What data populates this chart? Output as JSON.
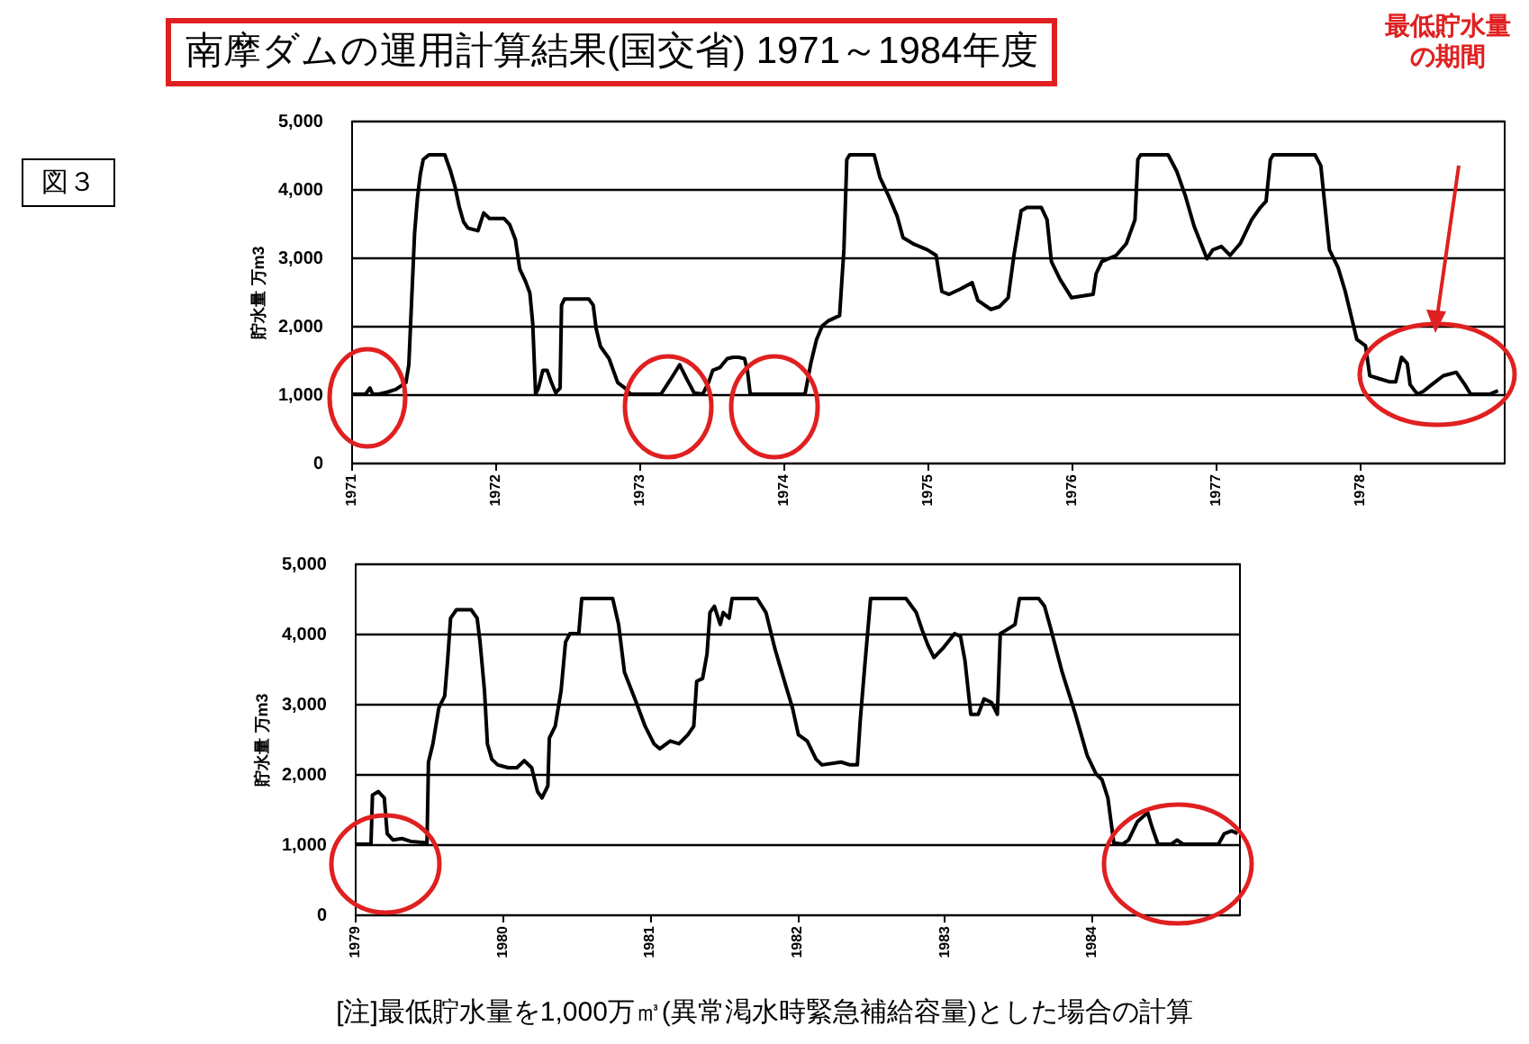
{
  "chart_data": [
    {
      "type": "line",
      "title": "南摩ダムの運用計算結果(国交省) 1971～1984年度",
      "ylabel": "貯水量 万m3",
      "color": "#000000",
      "grid": "y",
      "annotations": [
        "図３",
        "最低貯水量の期間"
      ],
      "xlim": [
        1971,
        1979
      ],
      "xticks": [
        1971,
        1972,
        1973,
        1974,
        1975,
        1976,
        1977,
        1978
      ],
      "ylim": [
        0,
        5000
      ],
      "yticks": [
        0,
        {
          "value": 1000,
          "label": "1,000"
        },
        {
          "value": 2000,
          "label": "2,000"
        },
        {
          "value": 3000,
          "label": "3,000"
        },
        {
          "value": 4000,
          "label": "4,000"
        },
        {
          "value": 5000,
          "label": "5,000"
        }
      ],
      "x": [
        1971.0,
        1971.1,
        1971.13,
        1971.15,
        1971.19,
        1971.25,
        1971.31,
        1971.38,
        1971.4,
        1971.42,
        1971.44,
        1971.46,
        1971.48,
        1971.5,
        1971.54,
        1971.65,
        1971.69,
        1971.72,
        1971.75,
        1971.78,
        1971.81,
        1971.88,
        1971.9,
        1971.92,
        1971.96,
        1972.06,
        1972.1,
        1972.14,
        1972.17,
        1972.21,
        1972.24,
        1972.26,
        1972.28,
        1972.3,
        1972.33,
        1972.36,
        1972.39,
        1972.42,
        1972.45,
        1972.46,
        1972.48,
        1972.65,
        1972.68,
        1972.7,
        1972.73,
        1972.79,
        1972.85,
        1972.9,
        1972.94,
        1973.15,
        1973.19,
        1973.23,
        1973.28,
        1973.33,
        1973.38,
        1973.44,
        1973.48,
        1973.51,
        1973.56,
        1973.61,
        1973.65,
        1973.69,
        1973.73,
        1973.75,
        1973.77,
        1974.15,
        1974.19,
        1974.23,
        1974.27,
        1974.31,
        1974.39,
        1974.42,
        1974.44,
        1974.46,
        1974.63,
        1974.67,
        1974.73,
        1974.79,
        1974.83,
        1974.9,
        1975.0,
        1975.06,
        1975.1,
        1975.15,
        1975.23,
        1975.31,
        1975.35,
        1975.44,
        1975.5,
        1975.56,
        1975.6,
        1975.65,
        1975.69,
        1975.79,
        1975.83,
        1975.86,
        1975.92,
        1976.0,
        1976.15,
        1976.17,
        1976.21,
        1976.31,
        1976.38,
        1976.44,
        1976.46,
        1976.48,
        1976.67,
        1976.73,
        1976.79,
        1976.85,
        1976.94,
        1976.98,
        1977.04,
        1977.1,
        1977.17,
        1977.25,
        1977.31,
        1977.35,
        1977.38,
        1977.4,
        1977.69,
        1977.73,
        1977.79,
        1977.85,
        1977.9,
        1977.94,
        1977.98,
        1978.04,
        1978.07,
        1978.13,
        1978.21,
        1978.25,
        1978.29,
        1978.33,
        1978.35,
        1978.4,
        1978.44,
        1978.5,
        1978.58,
        1978.67,
        1978.73,
        1978.77,
        1978.9,
        1978.96
      ],
      "values": [
        1000,
        1000,
        1090,
        1000,
        1000,
        1030,
        1070,
        1170,
        1430,
        2390,
        3350,
        3870,
        4220,
        4430,
        4500,
        4500,
        4260,
        4040,
        3740,
        3520,
        3430,
        3390,
        3520,
        3650,
        3570,
        3570,
        3480,
        3260,
        2830,
        2650,
        2480,
        2040,
        1000,
        1090,
        1350,
        1350,
        1170,
        1020,
        1090,
        2300,
        2390,
        2390,
        2300,
        1960,
        1700,
        1520,
        1170,
        1090,
        1000,
        1000,
        1130,
        1260,
        1430,
        1220,
        1020,
        1000,
        1170,
        1350,
        1390,
        1520,
        1540,
        1540,
        1520,
        1350,
        1000,
        1000,
        1450,
        1800,
        2000,
        2070,
        2150,
        3120,
        4430,
        4500,
        4500,
        4170,
        3900,
        3600,
        3290,
        3200,
        3110,
        3030,
        2500,
        2460,
        2540,
        2630,
        2370,
        2240,
        2280,
        2410,
        3030,
        3680,
        3730,
        3730,
        3550,
        2940,
        2680,
        2410,
        2460,
        2760,
        2940,
        3030,
        3200,
        3550,
        4430,
        4500,
        4500,
        4260,
        3900,
        3460,
        2980,
        3110,
        3160,
        3030,
        3200,
        3550,
        3730,
        3820,
        4430,
        4500,
        4500,
        4340,
        3110,
        2850,
        2500,
        2150,
        1800,
        1710,
        1270,
        1230,
        1180,
        1180,
        1540,
        1450,
        1140,
        1000,
        1040,
        1140,
        1270,
        1320,
        1140,
        1000,
        1000,
        1050
      ]
    },
    {
      "type": "line",
      "ylabel": "貯水量 万m3",
      "color": "#000000",
      "grid": "y",
      "annotations": [
        "[注]最低貯水量を1,000万㎥(異常渇水時緊急補給容量)とした場合の計算"
      ],
      "xlim": [
        1979,
        1985
      ],
      "xticks": [
        1979,
        1980,
        1981,
        1982,
        1983,
        1984
      ],
      "ylim": [
        0,
        5000
      ],
      "yticks": [
        0,
        {
          "value": 1000,
          "label": "1,000"
        },
        {
          "value": 2000,
          "label": "2,000"
        },
        {
          "value": 3000,
          "label": "3,000"
        },
        {
          "value": 4000,
          "label": "4,000"
        },
        {
          "value": 5000,
          "label": "5,000"
        }
      ],
      "x": [
        1979.0,
        1979.11,
        1979.12,
        1979.16,
        1979.2,
        1979.22,
        1979.26,
        1979.32,
        1979.38,
        1979.49,
        1979.5,
        1979.53,
        1979.57,
        1979.61,
        1979.63,
        1979.65,
        1979.69,
        1979.79,
        1979.83,
        1979.85,
        1979.88,
        1979.9,
        1979.93,
        1979.97,
        1980.04,
        1980.1,
        1980.15,
        1980.2,
        1980.24,
        1980.27,
        1980.31,
        1980.32,
        1980.36,
        1980.4,
        1980.43,
        1980.46,
        1980.52,
        1980.54,
        1980.75,
        1980.79,
        1980.83,
        1980.91,
        1980.97,
        1981.03,
        1981.07,
        1981.14,
        1981.2,
        1981.26,
        1981.3,
        1981.32,
        1981.36,
        1981.39,
        1981.41,
        1981.44,
        1981.48,
        1981.5,
        1981.54,
        1981.56,
        1981.73,
        1981.79,
        1981.85,
        1981.91,
        1981.97,
        1982.01,
        1982.07,
        1982.13,
        1982.17,
        1982.3,
        1982.36,
        1982.41,
        1982.43,
        1982.46,
        1982.5,
        1982.74,
        1982.81,
        1982.85,
        1982.89,
        1982.93,
        1982.99,
        1983.07,
        1983.11,
        1983.14,
        1983.18,
        1983.23,
        1983.27,
        1983.32,
        1983.36,
        1983.38,
        1983.42,
        1983.48,
        1983.51,
        1983.64,
        1983.68,
        1983.72,
        1983.8,
        1983.89,
        1983.97,
        1984.03,
        1984.07,
        1984.11,
        1984.15,
        1984.21,
        1984.25,
        1984.31,
        1984.38,
        1984.41,
        1984.45,
        1984.54,
        1984.58,
        1984.62,
        1984.86,
        1984.9,
        1984.95,
        1984.99
      ],
      "values": [
        1000,
        1000,
        1700,
        1750,
        1660,
        1150,
        1060,
        1080,
        1040,
        1020,
        2170,
        2430,
        2940,
        3110,
        3620,
        4220,
        4340,
        4340,
        4220,
        3880,
        3190,
        2430,
        2210,
        2130,
        2090,
        2090,
        2190,
        2090,
        1750,
        1660,
        1830,
        2510,
        2680,
        3190,
        3880,
        4000,
        4000,
        4500,
        4500,
        4130,
        3450,
        3020,
        2680,
        2430,
        2360,
        2470,
        2430,
        2560,
        2680,
        3320,
        3360,
        3710,
        4300,
        4390,
        4130,
        4300,
        4220,
        4500,
        4500,
        4300,
        3790,
        3360,
        2940,
        2560,
        2470,
        2210,
        2130,
        2170,
        2130,
        2130,
        2770,
        3530,
        4500,
        4500,
        4300,
        4050,
        3830,
        3660,
        3790,
        4000,
        3960,
        3620,
        2850,
        2850,
        3070,
        3020,
        2850,
        4000,
        4050,
        4130,
        4500,
        4500,
        4390,
        4090,
        3450,
        2850,
        2260,
        2000,
        1920,
        1660,
        1020,
        1000,
        1060,
        1320,
        1450,
        1240,
        1000,
        1000,
        1060,
        1000,
        1000,
        1150,
        1190,
        1150
      ]
    }
  ]
}
